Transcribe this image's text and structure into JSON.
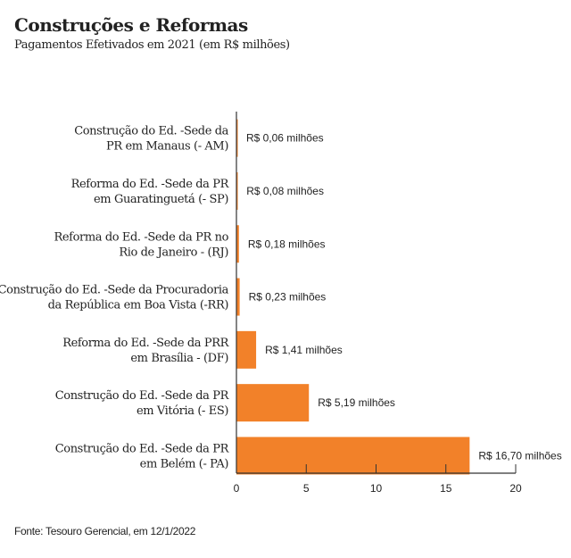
{
  "chart_data": {
    "type": "bar",
    "orientation": "horizontal",
    "title": "Construções e Reformas",
    "subtitle": "Pagamentos Efetivados em 2021 (em R$ milhões)",
    "categories": [
      [
        "Construção do Ed. -Sede da",
        "PR em Manaus (- AM)"
      ],
      [
        "Reforma do Ed. -Sede da PR",
        "em Guaratinguetá (- SP)"
      ],
      [
        "Reforma do Ed. -Sede da PR no",
        "Rio de Janeiro  - (RJ)"
      ],
      [
        "Construção do Ed. -Sede da Procuradoria",
        "da República em Boa Vista (-RR)"
      ],
      [
        "Reforma do Ed. -Sede da PRR",
        "em Brasília - (DF)"
      ],
      [
        "Construção do Ed. -Sede da PR",
        "em Vitória (- ES)"
      ],
      [
        "Construção do Ed. -Sede da PR",
        "em Belém (- PA)"
      ]
    ],
    "values": [
      0.06,
      0.08,
      0.18,
      0.23,
      1.41,
      5.19,
      16.7
    ],
    "data_labels": [
      "R$ 0,06 milhões",
      "R$ 0,08 milhões",
      "R$ 0,18 milhões",
      "R$ 0,23 milhões",
      "R$ 1,41 milhões",
      "R$ 5,19 milhões",
      "R$ 16,70 milhões"
    ],
    "xlim": [
      0,
      20
    ],
    "xticks": [
      0,
      5,
      10,
      15,
      20
    ],
    "grid": false,
    "bar_color": "#f28129",
    "source": "Fonte: Tesouro Gerencial, em 12/1/2022"
  }
}
